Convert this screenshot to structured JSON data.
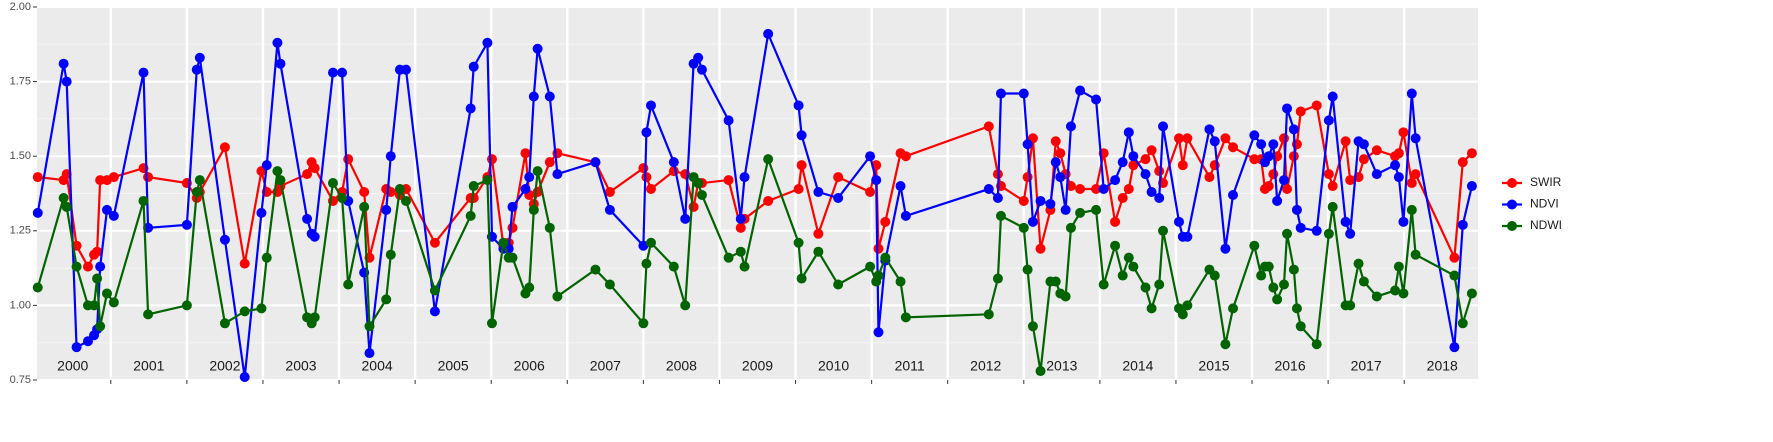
{
  "chart_data": {
    "type": "line",
    "x": [
      2000.04,
      2000.38,
      2000.42,
      2000.55,
      2000.7,
      2000.78,
      2000.82,
      2000.86,
      2000.95,
      2001.04,
      2001.43,
      2001.49,
      2002.0,
      2002.13,
      2002.17,
      2002.5,
      2002.76,
      2002.98,
      2003.05,
      2003.19,
      2003.23,
      2003.58,
      2003.64,
      2003.68,
      2003.92,
      2004.04,
      2004.12,
      2004.33,
      2004.4,
      2004.62,
      2004.68,
      2004.8,
      2004.88,
      2005.26,
      2005.73,
      2005.77,
      2005.95,
      2006.01,
      2006.16,
      2006.23,
      2006.28,
      2006.45,
      2006.5,
      2006.56,
      2006.61,
      2006.77,
      2006.87,
      2007.37,
      2007.56,
      2008.0,
      2008.04,
      2008.1,
      2008.4,
      2008.55,
      2008.66,
      2008.72,
      2008.77,
      2009.12,
      2009.28,
      2009.33,
      2009.64,
      2010.04,
      2010.08,
      2010.3,
      2010.56,
      2010.98,
      2011.06,
      2011.09,
      2011.18,
      2011.38,
      2011.45,
      2012.54,
      2012.66,
      2012.7,
      2013.0,
      2013.05,
      2013.12,
      2013.22,
      2013.35,
      2013.42,
      2013.48,
      2013.55,
      2013.62,
      2013.74,
      2013.95,
      2014.05,
      2014.2,
      2014.3,
      2014.38,
      2014.44,
      2014.6,
      2014.68,
      2014.78,
      2014.83,
      2015.04,
      2015.09,
      2015.15,
      2015.44,
      2015.51,
      2015.65,
      2015.75,
      2016.03,
      2016.12,
      2016.17,
      2016.22,
      2016.28,
      2016.33,
      2016.42,
      2016.46,
      2016.55,
      2016.59,
      2016.64,
      2016.85,
      2017.01,
      2017.06,
      2017.23,
      2017.29,
      2017.4,
      2017.47,
      2017.64,
      2017.88,
      2017.93,
      2017.99,
      2018.1,
      2018.15,
      2018.66,
      2018.77,
      2018.89
    ],
    "series": [
      {
        "name": "SWIR",
        "color": "#ff0000",
        "values": [
          1.43,
          1.42,
          1.44,
          1.2,
          1.13,
          1.17,
          1.18,
          1.42,
          1.42,
          1.43,
          1.46,
          1.43,
          1.41,
          1.36,
          1.38,
          1.53,
          1.14,
          1.45,
          1.38,
          1.38,
          1.4,
          1.44,
          1.48,
          1.46,
          1.35,
          1.38,
          1.49,
          1.38,
          1.16,
          1.39,
          1.38,
          1.37,
          1.39,
          1.21,
          1.36,
          1.36,
          1.43,
          1.49,
          1.2,
          1.21,
          1.26,
          1.51,
          1.37,
          1.34,
          1.38,
          1.48,
          1.51,
          1.48,
          1.38,
          1.46,
          1.43,
          1.39,
          1.45,
          1.44,
          1.33,
          1.41,
          1.41,
          1.42,
          1.26,
          1.29,
          1.35,
          1.39,
          1.47,
          1.24,
          1.43,
          1.38,
          1.47,
          1.19,
          1.28,
          1.51,
          1.5,
          1.6,
          1.44,
          1.4,
          1.35,
          1.43,
          1.56,
          1.19,
          1.32,
          1.55,
          1.51,
          1.44,
          1.4,
          1.39,
          1.39,
          1.51,
          1.28,
          1.36,
          1.39,
          1.47,
          1.49,
          1.52,
          1.45,
          1.41,
          1.56,
          1.47,
          1.56,
          1.43,
          1.47,
          1.56,
          1.53,
          1.49,
          1.49,
          1.39,
          1.4,
          1.44,
          1.5,
          1.56,
          1.39,
          1.5,
          1.54,
          1.65,
          1.67,
          1.44,
          1.4,
          1.55,
          1.42,
          1.43,
          1.49,
          1.52,
          1.5,
          1.51,
          1.58,
          1.41,
          1.44,
          1.16,
          1.48,
          1.51
        ]
      },
      {
        "name": "NDVI",
        "color": "#0000ff",
        "values": [
          1.31,
          1.81,
          1.75,
          0.86,
          0.88,
          0.9,
          0.92,
          1.13,
          1.32,
          1.3,
          1.78,
          1.26,
          1.27,
          1.79,
          1.83,
          1.22,
          0.76,
          1.31,
          1.47,
          1.88,
          1.81,
          1.29,
          1.24,
          1.23,
          1.78,
          1.78,
          1.35,
          1.11,
          0.84,
          1.32,
          1.5,
          1.79,
          1.79,
          0.98,
          1.66,
          1.8,
          1.88,
          1.23,
          1.19,
          1.19,
          1.33,
          1.39,
          1.43,
          1.7,
          1.86,
          1.7,
          1.44,
          1.48,
          1.32,
          1.2,
          1.58,
          1.67,
          1.48,
          1.29,
          1.81,
          1.83,
          1.79,
          1.62,
          1.29,
          1.43,
          1.91,
          1.67,
          1.57,
          1.38,
          1.36,
          1.5,
          1.42,
          0.91,
          1.15,
          1.4,
          1.3,
          1.39,
          1.36,
          1.71,
          1.71,
          1.54,
          1.28,
          1.35,
          1.34,
          1.48,
          1.43,
          1.32,
          1.6,
          1.72,
          1.69,
          1.39,
          1.42,
          1.48,
          1.58,
          1.5,
          1.44,
          1.38,
          1.36,
          1.6,
          1.28,
          1.23,
          1.23,
          1.59,
          1.55,
          1.19,
          1.37,
          1.57,
          1.54,
          1.48,
          1.5,
          1.54,
          1.35,
          1.42,
          1.66,
          1.59,
          1.32,
          1.26,
          1.25,
          1.62,
          1.7,
          1.28,
          1.24,
          1.55,
          1.54,
          1.44,
          1.47,
          1.43,
          1.28,
          1.71,
          1.56,
          0.86,
          1.27,
          1.4
        ]
      },
      {
        "name": "NDWI",
        "color": "#006400",
        "values": [
          1.06,
          1.36,
          1.33,
          1.13,
          1.0,
          1.0,
          1.09,
          0.93,
          1.04,
          1.01,
          1.35,
          0.97,
          1.0,
          1.38,
          1.42,
          0.94,
          0.98,
          0.99,
          1.16,
          1.45,
          1.42,
          0.96,
          0.94,
          0.96,
          1.41,
          1.36,
          1.07,
          1.33,
          0.93,
          1.02,
          1.17,
          1.39,
          1.35,
          1.05,
          1.3,
          1.4,
          1.42,
          0.94,
          1.21,
          1.16,
          1.16,
          1.04,
          1.06,
          1.32,
          1.45,
          1.26,
          1.03,
          1.12,
          1.07,
          0.94,
          1.14,
          1.21,
          1.13,
          1.0,
          1.43,
          1.41,
          1.37,
          1.16,
          1.18,
          1.13,
          1.49,
          1.21,
          1.09,
          1.18,
          1.07,
          1.13,
          1.08,
          1.1,
          1.16,
          1.08,
          0.96,
          0.97,
          1.09,
          1.3,
          1.26,
          1.12,
          0.93,
          0.78,
          1.08,
          1.08,
          1.04,
          1.03,
          1.26,
          1.31,
          1.32,
          1.07,
          1.2,
          1.1,
          1.16,
          1.13,
          1.06,
          0.99,
          1.07,
          1.25,
          0.99,
          0.97,
          1.0,
          1.12,
          1.1,
          0.87,
          0.99,
          1.2,
          1.1,
          1.13,
          1.13,
          1.06,
          1.02,
          1.07,
          1.24,
          1.12,
          0.99,
          0.93,
          0.87,
          1.24,
          1.33,
          1.0,
          1.0,
          1.14,
          1.08,
          1.03,
          1.05,
          1.13,
          1.04,
          1.32,
          1.17,
          1.1,
          0.94,
          1.04
        ]
      }
    ],
    "xlim": [
      2000.03,
      2018.97
    ],
    "xticks": [
      2001,
      2002,
      2003,
      2004,
      2005,
      2006,
      2007,
      2008,
      2009,
      2010,
      2011,
      2012,
      2013,
      2014,
      2015,
      2016,
      2017,
      2018
    ],
    "year_labels": [
      {
        "value": 2000.5,
        "label": "2000"
      },
      {
        "value": 2001.5,
        "label": "2001"
      },
      {
        "value": 2002.5,
        "label": "2002"
      },
      {
        "value": 2003.5,
        "label": "2003"
      },
      {
        "value": 2004.5,
        "label": "2004"
      },
      {
        "value": 2005.5,
        "label": "2005"
      },
      {
        "value": 2006.5,
        "label": "2006"
      },
      {
        "value": 2007.5,
        "label": "2007"
      },
      {
        "value": 2008.5,
        "label": "2008"
      },
      {
        "value": 2009.5,
        "label": "2009"
      },
      {
        "value": 2010.5,
        "label": "2010"
      },
      {
        "value": 2011.5,
        "label": "2011"
      },
      {
        "value": 2012.5,
        "label": "2012"
      },
      {
        "value": 2013.5,
        "label": "2013"
      },
      {
        "value": 2014.5,
        "label": "2014"
      },
      {
        "value": 2015.5,
        "label": "2015"
      },
      {
        "value": 2016.5,
        "label": "2016"
      },
      {
        "value": 2017.5,
        "label": "2017"
      },
      {
        "value": 2018.5,
        "label": "2018"
      }
    ],
    "ylim": [
      0.75,
      2.0
    ],
    "yticks": [
      {
        "value": 0.75,
        "label": "0.75"
      },
      {
        "value": 1.0,
        "label": "1.00"
      },
      {
        "value": 1.25,
        "label": "1.25"
      },
      {
        "value": 1.5,
        "label": "1.50"
      },
      {
        "value": 1.75,
        "label": "1.75"
      },
      {
        "value": 2.0,
        "label": "2.00"
      }
    ],
    "grid": true,
    "legend": "right"
  }
}
